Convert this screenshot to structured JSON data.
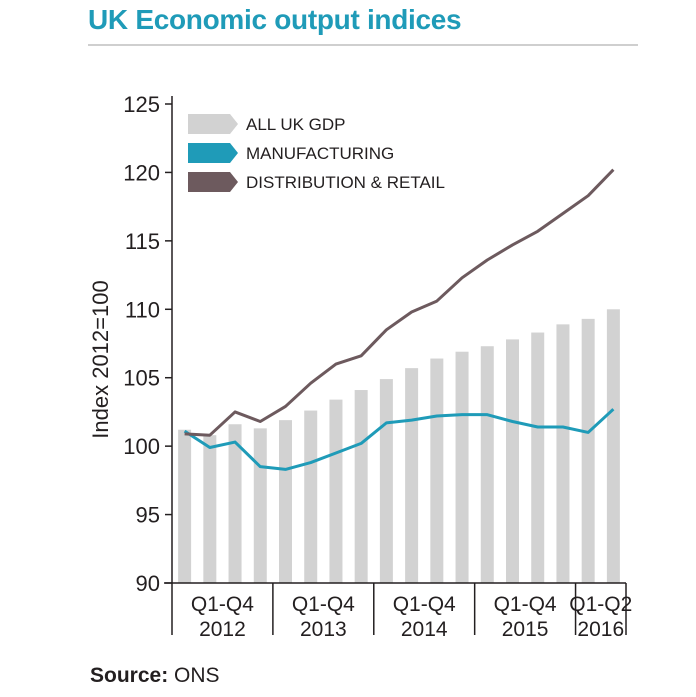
{
  "title": "UK Economic output indices",
  "source_label": "Source:",
  "source_value": "ONS",
  "chart_data": {
    "type": "bar+line",
    "ylabel": "Index 2012=100",
    "ylim": [
      90,
      125
    ],
    "yticks": [
      90,
      95,
      100,
      105,
      110,
      115,
      120,
      125
    ],
    "x_quarters": [
      "2012 Q1",
      "2012 Q2",
      "2012 Q3",
      "2012 Q4",
      "2013 Q1",
      "2013 Q2",
      "2013 Q3",
      "2013 Q4",
      "2014 Q1",
      "2014 Q2",
      "2014 Q3",
      "2014 Q4",
      "2015 Q1",
      "2015 Q2",
      "2015 Q3",
      "2015 Q4",
      "2016 Q1",
      "2016 Q2"
    ],
    "x_groups": [
      {
        "label": "Q1-Q4",
        "year": "2012",
        "quarters": 4
      },
      {
        "label": "Q1-Q4",
        "year": "2013",
        "quarters": 4
      },
      {
        "label": "Q1-Q4",
        "year": "2014",
        "quarters": 4
      },
      {
        "label": "Q1-Q4",
        "year": "2015",
        "quarters": 4
      },
      {
        "label": "Q1-Q2",
        "year": "2016",
        "quarters": 2
      }
    ],
    "series": [
      {
        "name": "ALL UK GDP",
        "kind": "bar",
        "color": "#d2d2d2",
        "values": [
          101.2,
          100.8,
          101.6,
          101.3,
          101.9,
          102.6,
          103.4,
          104.1,
          104.9,
          105.7,
          106.4,
          106.9,
          107.3,
          107.8,
          108.3,
          108.9,
          109.3,
          110.0
        ]
      },
      {
        "name": "MANUFACTURING",
        "kind": "line",
        "color": "#1f9bb8",
        "values": [
          101.1,
          99.9,
          100.3,
          98.5,
          98.3,
          98.8,
          99.5,
          100.2,
          101.7,
          101.9,
          102.2,
          102.3,
          102.3,
          101.8,
          101.4,
          101.4,
          101.0,
          102.7
        ]
      },
      {
        "name": "DISTRIBUTION & RETAIL",
        "kind": "line",
        "color": "#6d5a5e",
        "values": [
          100.9,
          100.8,
          102.5,
          101.8,
          102.9,
          104.6,
          106.0,
          106.6,
          108.5,
          109.8,
          110.6,
          112.3,
          113.6,
          114.7,
          115.7,
          117.0,
          118.3,
          120.2
        ]
      }
    ],
    "legend_position": "top-left",
    "grid": false
  }
}
